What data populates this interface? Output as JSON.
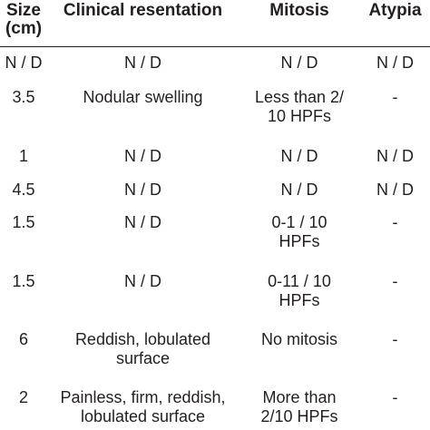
{
  "header": {
    "size": "Size",
    "size_unit": "(cm)",
    "clinical": "Clinical resentation",
    "mitosis": "Mitosis",
    "atypia": "Atypia"
  },
  "rows": [
    {
      "size": "N / D",
      "clinical": "N / D",
      "mitosis": "N / D",
      "atypia": "N / D"
    },
    {
      "size": "3.5",
      "clinical": "Nodular swelling",
      "mitosis": "Less than 2/\n10 HPFs",
      "atypia": "-"
    },
    {
      "size": "1",
      "clinical": "N / D",
      "mitosis": "N / D",
      "atypia": "N / D"
    },
    {
      "size": "4.5",
      "clinical": "N / D",
      "mitosis": "N / D",
      "atypia": "N / D"
    },
    {
      "size": "1.5",
      "clinical": "N / D",
      "mitosis": "0-1 / 10\nHPFs",
      "atypia": "-"
    },
    {
      "size": "1.5",
      "clinical": "N / D",
      "mitosis": "0-11 / 10\nHPFs",
      "atypia": "-"
    },
    {
      "size": "6",
      "clinical": "Reddish, lobulated\nsurface",
      "mitosis": "No mitosis",
      "atypia": "-"
    },
    {
      "size": "2",
      "clinical": "Painless, firm, reddish,\nlobulated surface",
      "mitosis": "More than\n2/10 HPFs",
      "atypia": "-"
    }
  ]
}
